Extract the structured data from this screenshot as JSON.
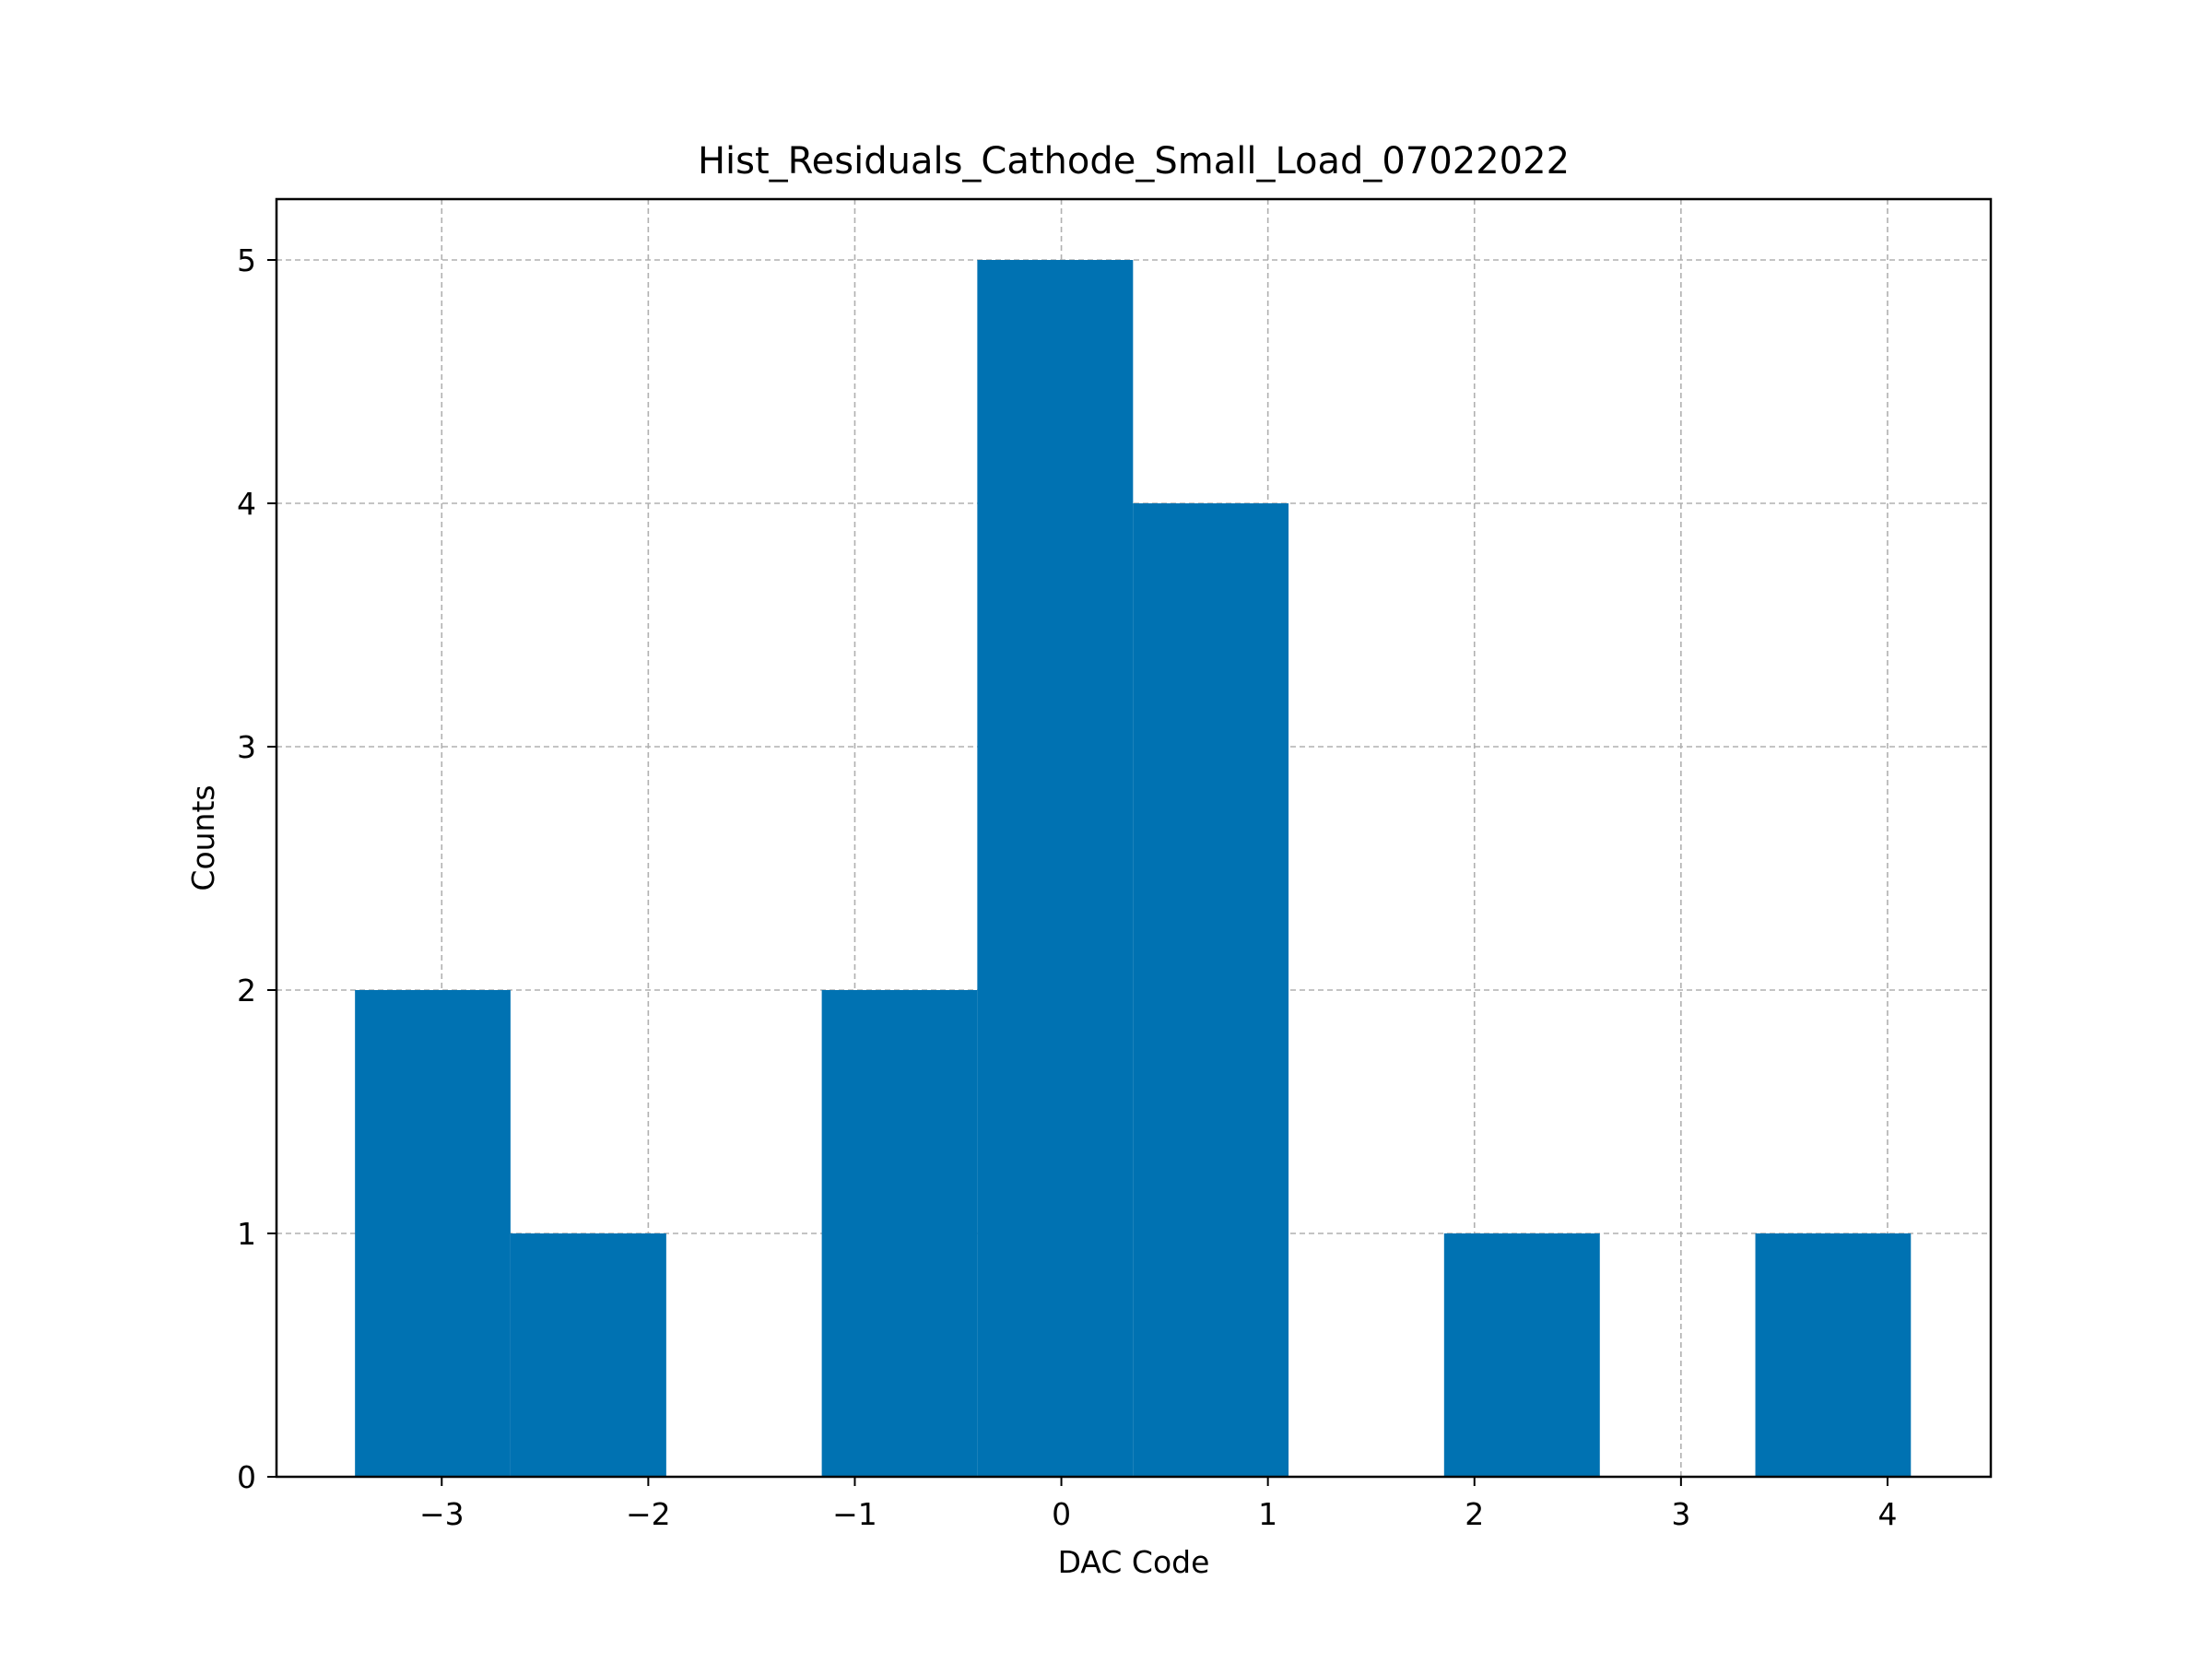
{
  "chart_data": {
    "type": "bar",
    "title": "Hist_Residuals_Cathode_Small_Load_07022022",
    "xlabel": "DAC Code",
    "ylabel": "Counts",
    "xlim": [
      -3.8,
      4.5
    ],
    "ylim": [
      0,
      5.25
    ],
    "grid": true,
    "bar_color": "#0072b2",
    "bin_edges": [
      -3.42,
      -2.667,
      -1.913,
      -1.16,
      -0.407,
      0.347,
      1.1,
      1.853,
      2.607,
      3.36,
      4.113
    ],
    "counts": [
      2,
      1,
      0,
      2,
      5,
      4,
      0,
      1,
      0,
      1
    ],
    "xticks": [
      {
        "value": -3,
        "label": "−3"
      },
      {
        "value": -2,
        "label": "−2"
      },
      {
        "value": -1,
        "label": "−1"
      },
      {
        "value": 0,
        "label": "0"
      },
      {
        "value": 1,
        "label": "1"
      },
      {
        "value": 2,
        "label": "2"
      },
      {
        "value": 3,
        "label": "3"
      },
      {
        "value": 4,
        "label": "4"
      }
    ],
    "yticks": [
      {
        "value": 0,
        "label": "0"
      },
      {
        "value": 1,
        "label": "1"
      },
      {
        "value": 2,
        "label": "2"
      },
      {
        "value": 3,
        "label": "3"
      },
      {
        "value": 4,
        "label": "4"
      },
      {
        "value": 5,
        "label": "5"
      }
    ]
  }
}
